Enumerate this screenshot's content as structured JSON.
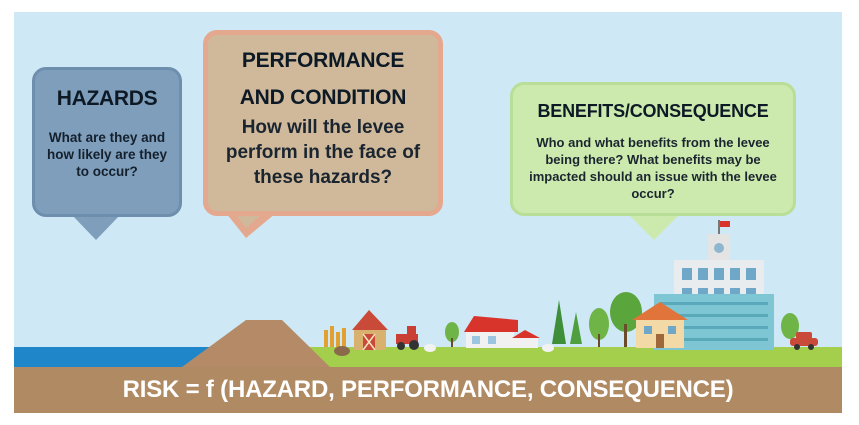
{
  "bubbles": {
    "hazards": {
      "title": "HAZARDS",
      "body": "What are they and how likely are they to occur?",
      "color": "#7f9ebc"
    },
    "performance": {
      "title_line1": "PERFORMANCE",
      "title_line2": "AND CONDITION",
      "body": "How will the levee perform in the face of these hazards?",
      "color": "#cfb99a"
    },
    "benefits": {
      "title": "BENEFITS/CONSEQUENCE",
      "body": "Who and what benefits from the levee being there? What benefits may be impacted should an issue with the levee occur?",
      "color": "#cdeaae"
    }
  },
  "formula": "RISK = f (HAZARD, PERFORMANCE, CONSEQUENCE)",
  "scene": {
    "elements": [
      "water",
      "levee",
      "farm-barn",
      "tractor",
      "houses",
      "trees",
      "city-buildings",
      "car",
      "animals"
    ],
    "colors": {
      "sky": "#cfe8f5",
      "water": "#1f87c9",
      "levee": "#b48b66",
      "ground": "#a4cf4d",
      "formula_bar": "#b08a63"
    }
  }
}
